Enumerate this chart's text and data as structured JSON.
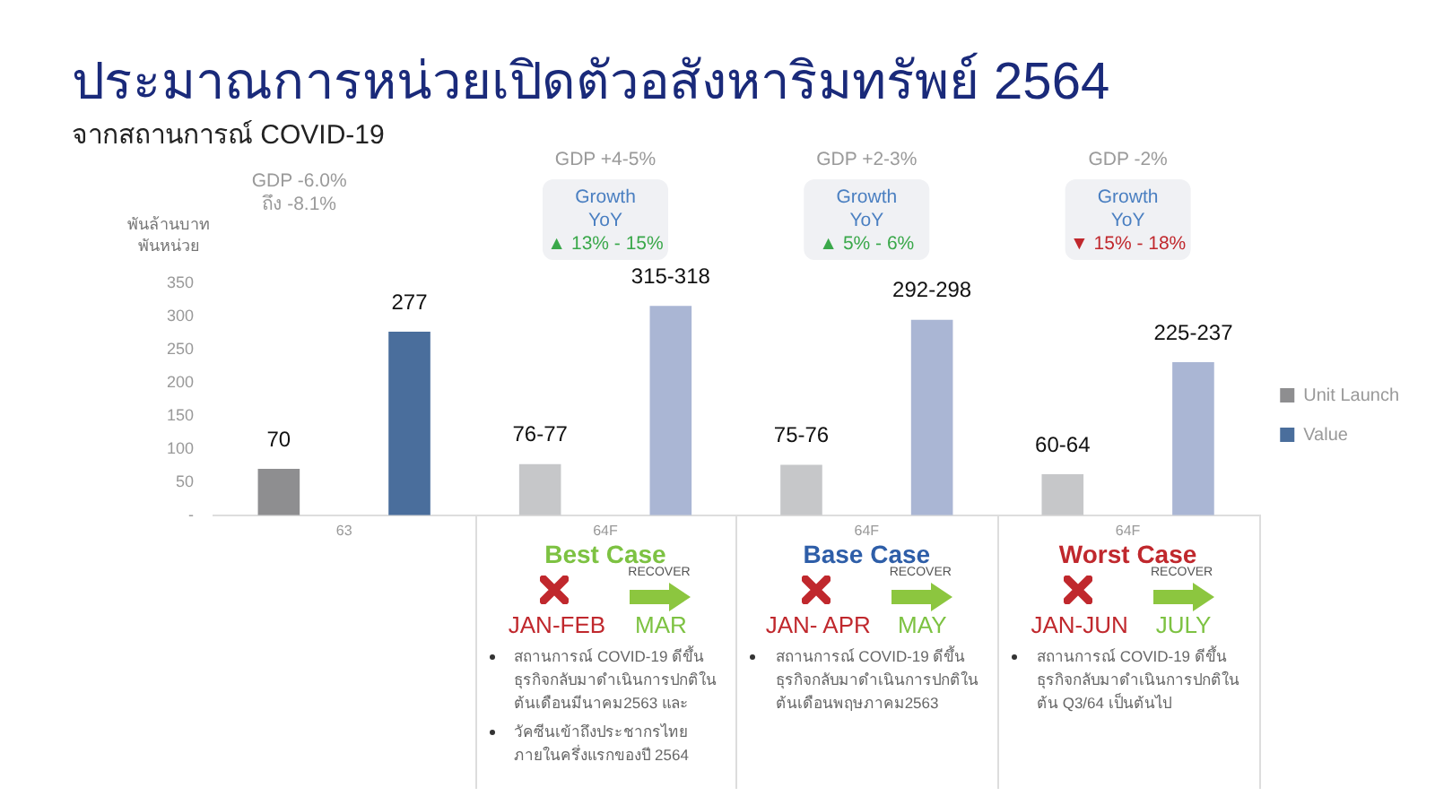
{
  "chart_data": {
    "type": "bar",
    "title": "ประมาณการหน่วยเปิดตัวอสังหาริมทรัพย์ 2564",
    "subtitle": "จากสถานการณ์ COVID-19",
    "ylabel": "พันล้านบาท\nพันหน่วย",
    "categories": [
      "63",
      "64F",
      "64F",
      "64F"
    ],
    "series": [
      {
        "name": "Unit Launch",
        "color": "#8e8e90",
        "colors": [
          "#8e8e90",
          "#c6c7c9",
          "#c6c7c9",
          "#c6c7c9"
        ],
        "values": [
          70,
          77,
          76,
          62
        ],
        "value_labels": [
          "70",
          "76-77",
          "75-76",
          "60-64"
        ]
      },
      {
        "name": "Value",
        "color": "#4a6e9c",
        "colors": [
          "#4a6e9c",
          "#aab6d4",
          "#aab6d4",
          "#aab6d4"
        ],
        "values": [
          277,
          316,
          295,
          231
        ],
        "value_labels": [
          "277",
          "315-318",
          "292-298",
          "225-237"
        ]
      }
    ],
    "ylim": [
      0,
      350
    ],
    "yticks": [
      {
        "value": 0,
        "label": "-"
      },
      50,
      100,
      150,
      200,
      250,
      300,
      350
    ],
    "grid": false,
    "legend": "right",
    "annotations": [
      "GDP -6.0%\nถึง -8.1%",
      "GDP +4-5%",
      "GDP +2-3%",
      "GDP -2%",
      "Growth\nYoY",
      "Growth\nYoY",
      "Growth\nYoY",
      "▲ 13% - 15%",
      "▲ 5% - 6%",
      "▼ 15% - 18%",
      "Best Case",
      "Base Case",
      "Worst Case",
      "JAN-FEB",
      "MAR",
      "JAN- APR",
      "MAY",
      "JAN-JUN",
      "JULY",
      "RECOVER",
      "RECOVER",
      "RECOVER",
      "สถานการณ์ COVID-19 ดีขึ้น ธุรกิจกลับมาดำเนินการปกติใน ต้นเดือนมีนาคม2563 และ",
      "วัคซีนเข้าถึงประชากรไทยภายในครึ่งแรกของปี 2564",
      "สถานการณ์ COVID-19 ดีขึ้น ธุรกิจกลับมาดำเนินการปกติใน ต้นเดือนพฤษภาคม2563",
      "สถานการณ์ COVID-19 ดีขึ้น ธุรกิจกลับมาดำเนินการปกติใน ต้น Q3/64 เป็นต้นไป"
    ]
  }
}
